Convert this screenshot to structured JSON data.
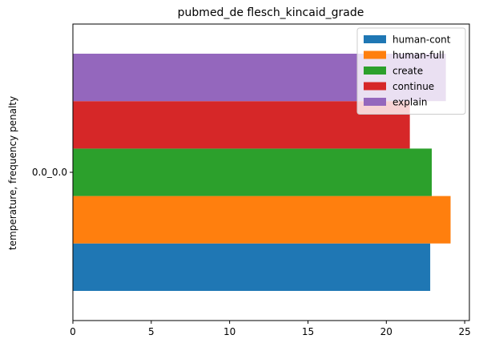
{
  "chart_data": {
    "type": "bar",
    "orientation": "horizontal",
    "title": "pubmed_de flesch_kincaid_grade",
    "xlabel": "",
    "ylabel": "temperature, frequency penalty",
    "categories": [
      "0.0_0.0"
    ],
    "xlim": [
      0,
      25.3
    ],
    "xticks": [
      0,
      5,
      10,
      15,
      20,
      25
    ],
    "grid": false,
    "legend_position": "top-right",
    "series": [
      {
        "name": "human-cont",
        "values": [
          22.8
        ],
        "color": "#1f77b4"
      },
      {
        "name": "human-full",
        "values": [
          24.1
        ],
        "color": "#ff7f0e"
      },
      {
        "name": "create",
        "values": [
          22.9
        ],
        "color": "#2ca02c"
      },
      {
        "name": "continue",
        "values": [
          21.5
        ],
        "color": "#d62728"
      },
      {
        "name": "explain",
        "values": [
          23.8
        ],
        "color": "#9467bd"
      }
    ]
  }
}
